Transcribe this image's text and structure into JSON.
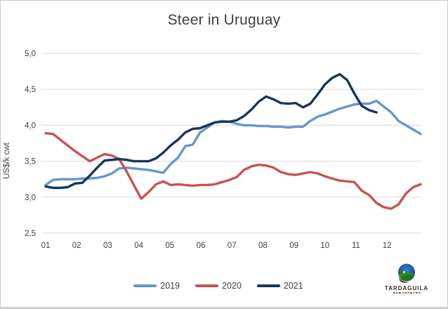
{
  "title": "Steer in Uruguay",
  "branding": {
    "name": "TARDAGUILA"
  },
  "colors": {
    "grid": "#d9d9d9",
    "axis_text": "#404040",
    "title_text": "#3f3f3f",
    "border": "#c9c9c9",
    "series_2019": "#6596cd",
    "series_2020": "#c8534e",
    "series_2021": "#17365d"
  },
  "chart_data": {
    "type": "line",
    "title": "Steer in Uruguay",
    "xlabel": "",
    "ylabel": "US$/k cwt",
    "ylim": [
      2.5,
      5.0
    ],
    "yticks": [
      2.5,
      3.0,
      3.5,
      4.0,
      4.5,
      5.0
    ],
    "ytick_labels": [
      "2,5",
      "3,0",
      "3,5",
      "4,0",
      "4,5",
      "5,0"
    ],
    "x_months": [
      "01",
      "02",
      "03",
      "04",
      "05",
      "06",
      "07",
      "08",
      "09",
      "10",
      "11",
      "12"
    ],
    "x_unit": "weekly observations, January through December",
    "grid": "horizontal only",
    "legend_position": "bottom-center",
    "series": [
      {
        "name": "2019",
        "color": "#6596cd",
        "values": [
          3.17,
          3.24,
          3.25,
          3.25,
          3.25,
          3.26,
          3.26,
          3.27,
          3.29,
          3.33,
          3.4,
          3.41,
          3.4,
          3.39,
          3.38,
          3.36,
          3.34,
          3.46,
          3.55,
          3.71,
          3.73,
          3.9,
          3.97,
          4.04,
          4.06,
          4.05,
          4.02,
          4.0,
          4.0,
          3.99,
          3.99,
          3.98,
          3.98,
          3.97,
          3.98,
          3.98,
          4.06,
          4.12,
          4.15,
          4.19,
          4.23,
          4.26,
          4.29,
          4.3,
          4.3,
          4.34,
          4.26,
          4.18,
          4.06,
          4.0,
          3.94,
          3.88
        ]
      },
      {
        "name": "2020",
        "color": "#c8534e",
        "values": [
          3.89,
          3.88,
          3.8,
          3.72,
          3.64,
          3.57,
          3.5,
          3.55,
          3.6,
          3.58,
          3.53,
          3.36,
          3.17,
          2.98,
          3.07,
          3.18,
          3.22,
          3.17,
          3.18,
          3.17,
          3.16,
          3.17,
          3.17,
          3.18,
          3.21,
          3.24,
          3.28,
          3.38,
          3.43,
          3.45,
          3.44,
          3.41,
          3.35,
          3.32,
          3.31,
          3.33,
          3.35,
          3.33,
          3.29,
          3.26,
          3.23,
          3.22,
          3.21,
          3.09,
          3.03,
          2.92,
          2.86,
          2.84,
          2.9,
          3.05,
          3.14,
          3.18
        ]
      },
      {
        "name": "2021",
        "color": "#17365d",
        "values": [
          3.15,
          3.13,
          3.13,
          3.14,
          3.19,
          3.2,
          3.3,
          3.41,
          3.51,
          3.52,
          3.53,
          3.52,
          3.5,
          3.5,
          3.5,
          3.54,
          3.62,
          3.72,
          3.8,
          3.9,
          3.95,
          3.96,
          4.0,
          4.04,
          4.05,
          4.05,
          4.07,
          4.13,
          4.22,
          4.33,
          4.4,
          4.36,
          4.31,
          4.3,
          4.31,
          4.25,
          4.3,
          4.43,
          4.57,
          4.66,
          4.71,
          4.63,
          4.44,
          4.27,
          4.21,
          4.18
        ]
      }
    ]
  }
}
